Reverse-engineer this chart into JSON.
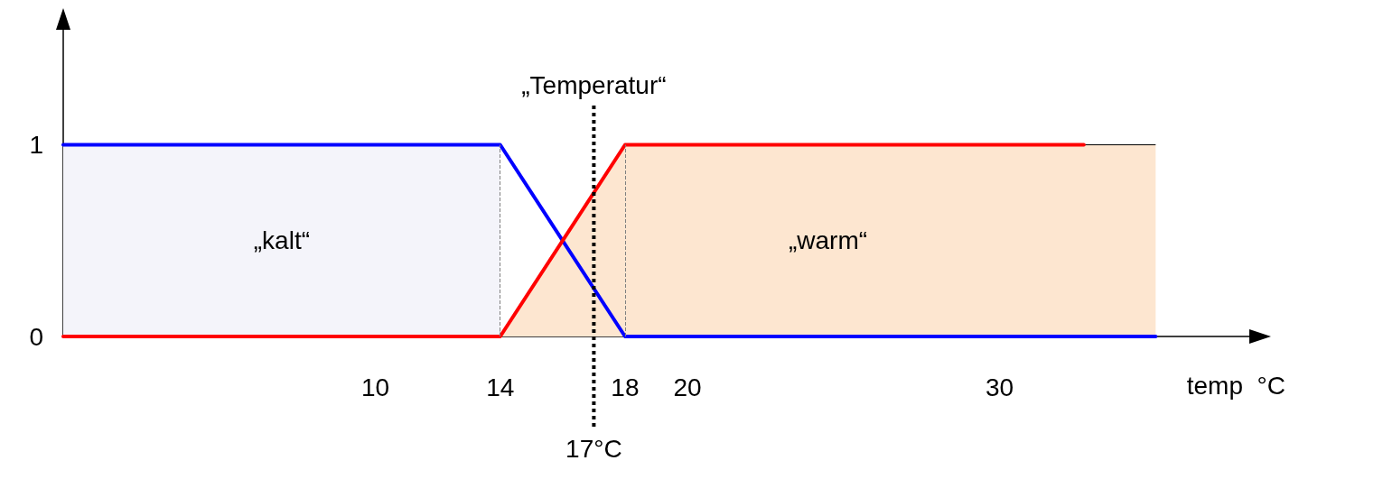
{
  "chart_data": {
    "type": "line",
    "xlabel": "temp  °C",
    "xlim": [
      0,
      38
    ],
    "xticks": [
      10,
      14,
      18,
      20,
      30
    ],
    "ylim": [
      0,
      1.6
    ],
    "yticks": [
      0,
      1
    ],
    "grid": false,
    "legend": false,
    "marker": "none",
    "series": [
      {
        "type": "area",
        "name": "„kalt“",
        "color": "#f4f4fa",
        "x": [
          0,
          14
        ],
        "values": [
          1,
          1
        ]
      },
      {
        "type": "area",
        "name": "„warm“",
        "color": "#fde6d0",
        "x": [
          14,
          18,
          35
        ],
        "values": [
          0,
          1,
          1
        ]
      },
      {
        "color": "#0000ff",
        "x": [
          0,
          14,
          18,
          35
        ],
        "values": [
          1,
          1,
          0,
          0
        ]
      },
      {
        "color": "#ff0000",
        "x": [
          0,
          14,
          18,
          32.7
        ],
        "values": [
          0,
          0,
          1,
          1
        ]
      }
    ],
    "ref_lines": [
      {
        "axis": "x",
        "value": 14,
        "label": null,
        "color": "#808080",
        "line_style": "dashed"
      },
      {
        "axis": "x",
        "value": 18,
        "label": null,
        "color": "#808080",
        "line_style": "dashed"
      },
      {
        "axis": "x",
        "value": 17,
        "label": "17°C",
        "color": "#000000",
        "line_style": "dotted"
      }
    ],
    "annotations": [
      "„Temperatur“"
    ]
  }
}
